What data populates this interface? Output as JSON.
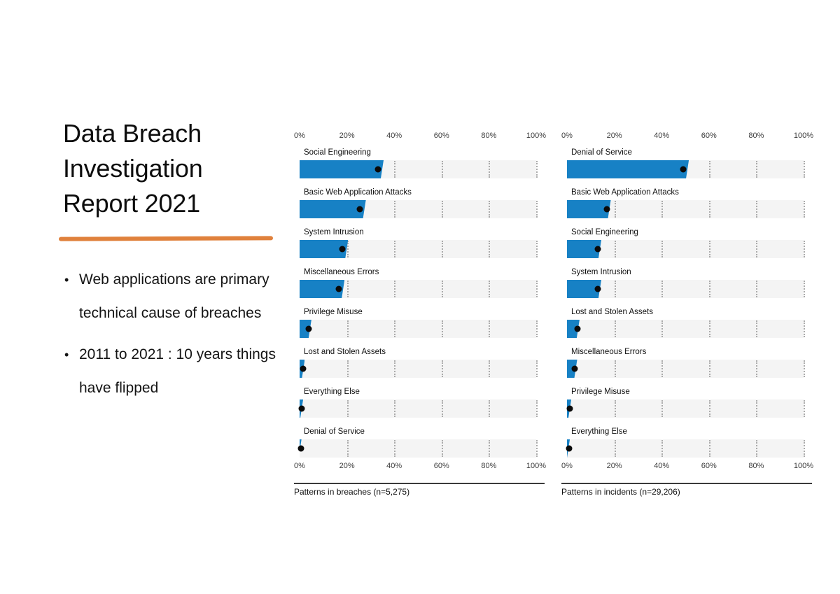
{
  "slide": {
    "title": "Data Breach Investigation Report 2021",
    "bullets": [
      "Web applications are primary technical cause of breaches",
      "2011 to 2021 : 10 years things have flipped"
    ],
    "accent_color": "#E0813C",
    "bullet_marker": "•"
  },
  "chart_data": [
    {
      "type": "bar",
      "orientation": "horizontal",
      "title": "Patterns in breaches (n=5,275)",
      "xlabel": "",
      "ylabel": "",
      "xlim": [
        0,
        100
      ],
      "tick_labels": [
        "0%",
        "20%",
        "40%",
        "60%",
        "80%",
        "100%"
      ],
      "tick_values": [
        0,
        20,
        40,
        60,
        80,
        100
      ],
      "grid": "dotted-vertical",
      "bar_color": "#1781C5",
      "dot_color": "#0A0A0A",
      "track_color": "#F4F4F4",
      "categories": [
        "Social Engineering",
        "Basic Web Application Attacks",
        "System Intrusion",
        "Miscellaneous Errors",
        "Privilege Misuse",
        "Lost and Stolen Assets",
        "Everything Else",
        "Denial of Service"
      ],
      "values": [
        33,
        25.5,
        18,
        16.5,
        3.8,
        1.4,
        0.9,
        0.5
      ],
      "bar_upper": [
        35.5,
        28,
        20.5,
        19,
        5,
        2.2,
        1.5,
        0.8
      ]
    },
    {
      "type": "bar",
      "orientation": "horizontal",
      "title": "Patterns in incidents (n=29,206)",
      "xlabel": "",
      "ylabel": "",
      "xlim": [
        0,
        100
      ],
      "tick_labels": [
        "0%",
        "20%",
        "40%",
        "60%",
        "80%",
        "100%"
      ],
      "tick_values": [
        0,
        20,
        40,
        60,
        80,
        100
      ],
      "grid": "dotted-vertical",
      "bar_color": "#1781C5",
      "dot_color": "#0A0A0A",
      "track_color": "#F4F4F4",
      "categories": [
        "Denial of Service",
        "Basic Web Application Attacks",
        "Social Engineering",
        "System Intrusion",
        "Lost and Stolen Assets",
        "Miscellaneous Errors",
        "Privilege Misuse",
        "Everything Else"
      ],
      "values": [
        49,
        16.8,
        13,
        13,
        4.3,
        3.4,
        1.3,
        0.8
      ],
      "bar_upper": [
        51.5,
        18.5,
        14.5,
        14.5,
        5.3,
        4.3,
        1.8,
        1.2
      ]
    }
  ]
}
